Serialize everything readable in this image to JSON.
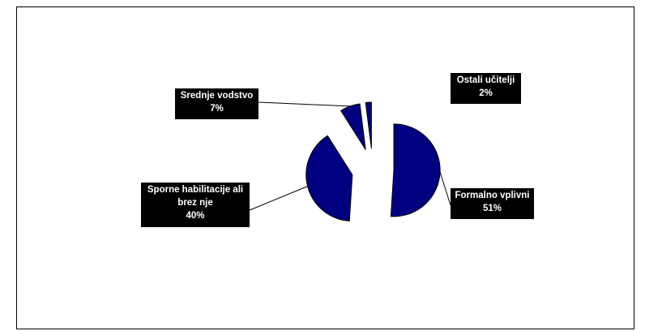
{
  "chart_data": {
    "type": "pie",
    "exploded": true,
    "slice_color": "#000080",
    "slice_stroke": "#000000",
    "label_background": "#000000",
    "label_text_color": "#ffffff",
    "slices": [
      {
        "label": "Formalno vplivni",
        "value": 51,
        "value_label": "51%"
      },
      {
        "label": "Sporne habilitacije ali brez nje",
        "value": 40,
        "value_label": "40%"
      },
      {
        "label": "Srednje vodstvo",
        "value": 7,
        "value_label": "7%"
      },
      {
        "label": "Ostali učitelji",
        "value": 2,
        "value_label": "2%"
      }
    ]
  }
}
